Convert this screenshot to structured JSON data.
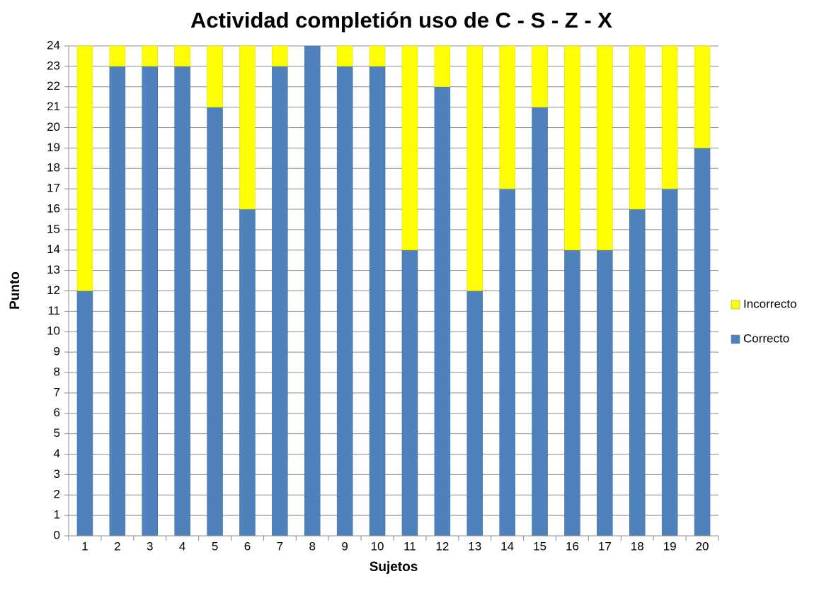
{
  "chart_data": {
    "type": "stacked_bar",
    "title": "Actividad completión uso de C - S - Z - X",
    "x_label": "Sujetos",
    "y_label": "Punto",
    "categories": [
      "1",
      "2",
      "3",
      "4",
      "5",
      "6",
      "7",
      "8",
      "9",
      "10",
      "11",
      "12",
      "13",
      "14",
      "15",
      "16",
      "17",
      "18",
      "19",
      "20"
    ],
    "series": [
      {
        "name": "Correcto",
        "color": "#4f81bd",
        "values": [
          12,
          23,
          23,
          23,
          21,
          16,
          23,
          24,
          23,
          23,
          14,
          22,
          12,
          17,
          21,
          14,
          14,
          16,
          17,
          19
        ]
      },
      {
        "name": "Incorrecto",
        "color": "#ffff00",
        "values": [
          12,
          1,
          1,
          1,
          3,
          8,
          1,
          0,
          1,
          1,
          10,
          2,
          12,
          7,
          3,
          10,
          10,
          8,
          7,
          5
        ]
      }
    ],
    "ylim": [
      0,
      24
    ],
    "yticks": [
      0,
      1,
      2,
      3,
      4,
      5,
      6,
      7,
      8,
      9,
      10,
      11,
      12,
      13,
      14,
      15,
      16,
      17,
      18,
      19,
      20,
      21,
      22,
      23,
      24
    ],
    "grid": true,
    "legend": "right"
  }
}
